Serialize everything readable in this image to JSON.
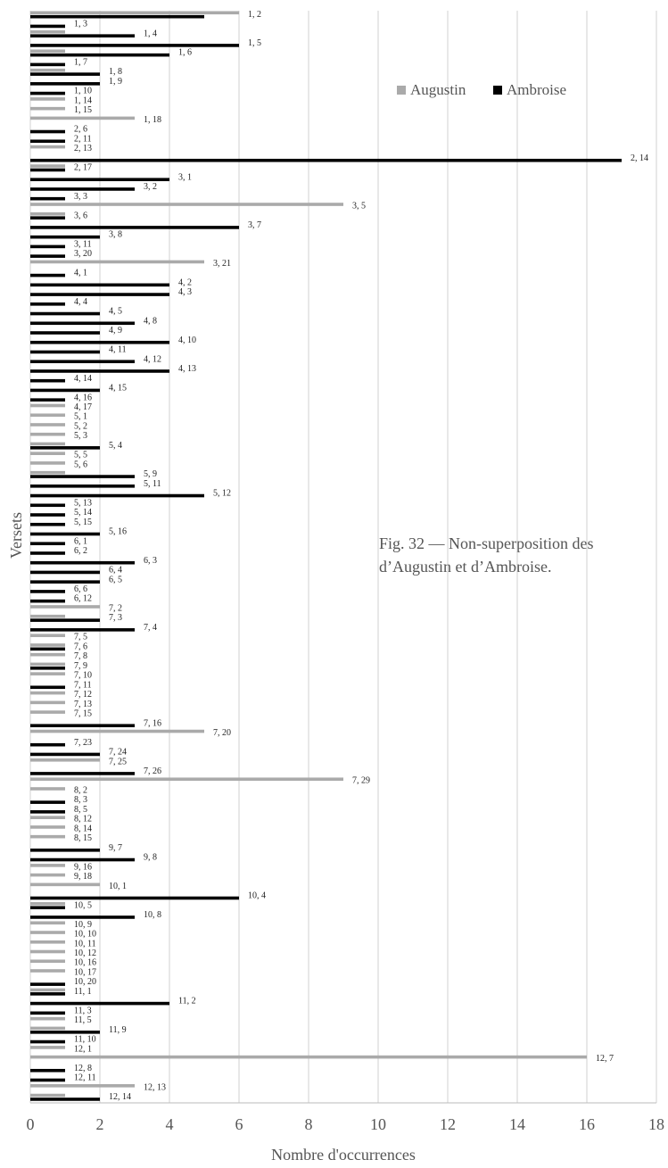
{
  "chart_data": {
    "type": "barh",
    "x_label": "Nombre d'occurrences",
    "y_label": "Versets",
    "annotation": [
      "Fig. 32 — Non-superposition des",
      "d’Augustin et d’Ambroise."
    ],
    "legend": "upper right",
    "grid": true,
    "xlim": [
      0,
      18
    ],
    "xticks": [
      0,
      2,
      4,
      6,
      8,
      10,
      12,
      14,
      16,
      18
    ],
    "categories": [
      "1, 2",
      "1, 3",
      "1, 4",
      "1, 5",
      "1, 6",
      "1, 7",
      "1, 8",
      "1, 9",
      "1, 10",
      "1, 14",
      "1, 15",
      "1, 18",
      "2, 6",
      "2, 11",
      "2, 13",
      "2, 14",
      "2, 17",
      "3, 1",
      "3, 2",
      "3, 3",
      "3, 5",
      "3, 6",
      "3, 7",
      "3, 8",
      "3, 11",
      "3, 20",
      "3, 21",
      "4, 1",
      "4, 2",
      "4, 3",
      "4, 4",
      "4, 5",
      "4, 8",
      "4, 9",
      "4, 10",
      "4, 11",
      "4, 12",
      "4, 13",
      "4, 14",
      "4, 15",
      "4, 16",
      "4, 17",
      "5, 1",
      "5, 2",
      "5, 3",
      "5, 4",
      "5, 5",
      "5, 6",
      "5, 9",
      "5, 11",
      "5, 12",
      "5, 13",
      "5, 14",
      "5, 15",
      "5, 16",
      "6, 1",
      "6, 2",
      "6, 3",
      "6, 4",
      "6, 5",
      "6, 6",
      "6, 12",
      "7, 2",
      "7, 3",
      "7, 4",
      "7, 5",
      "7, 6",
      "7, 8",
      "7, 9",
      "7, 10",
      "7, 11",
      "7, 12",
      "7, 13",
      "7, 15",
      "7, 16",
      "7, 20",
      "7, 23",
      "7, 24",
      "7, 25",
      "7, 26",
      "7, 29",
      "8, 2",
      "8, 3",
      "8, 5",
      "8, 12",
      "8, 14",
      "8, 15",
      "9, 7",
      "9, 8",
      "9, 16",
      "9, 18",
      "10, 1",
      "10, 4",
      "10, 5",
      "10, 8",
      "10, 9",
      "10, 10",
      "10, 11",
      "10, 12",
      "10, 16",
      "10, 17",
      "10, 20",
      "11, 1",
      "11, 2",
      "11, 3",
      "11, 5",
      "11, 9",
      "11, 10",
      "12, 1",
      "12, 7",
      "12, 8",
      "12, 11",
      "12, 13",
      "12, 14"
    ],
    "series": [
      {
        "name": "Augustin",
        "color": "#aaaaaa",
        "values": [
          6,
          0,
          1,
          0,
          1,
          0,
          1,
          0,
          0,
          1,
          1,
          3,
          0,
          0,
          1,
          0,
          1,
          0,
          0,
          0,
          9,
          1,
          0,
          0,
          0,
          0,
          5,
          0,
          0,
          0,
          0,
          0,
          0,
          0,
          0,
          0,
          0,
          0,
          0,
          0,
          0,
          1,
          1,
          1,
          1,
          1,
          1,
          1,
          1,
          0,
          0,
          0,
          0,
          0,
          0,
          0,
          0,
          0,
          0,
          0,
          0,
          0,
          2,
          1,
          0,
          1,
          1,
          1,
          1,
          1,
          0,
          1,
          1,
          1,
          0,
          5,
          0,
          0,
          2,
          0,
          9,
          1,
          0,
          0,
          1,
          1,
          1,
          0,
          0,
          1,
          1,
          2,
          0,
          1,
          0,
          1,
          1,
          1,
          1,
          1,
          1,
          0,
          1,
          0,
          0,
          1,
          1,
          0,
          1,
          16,
          0,
          0,
          3,
          1
        ]
      },
      {
        "name": "Ambroise",
        "color": "#000000",
        "values": [
          5,
          1,
          3,
          6,
          4,
          1,
          2,
          2,
          1,
          0,
          0,
          0,
          1,
          1,
          0,
          17,
          1,
          4,
          3,
          1,
          0,
          1,
          6,
          2,
          1,
          1,
          0,
          1,
          4,
          4,
          1,
          2,
          3,
          2,
          4,
          2,
          3,
          4,
          1,
          2,
          1,
          0,
          0,
          0,
          0,
          2,
          0,
          0,
          3,
          3,
          5,
          1,
          1,
          1,
          2,
          1,
          1,
          3,
          2,
          2,
          1,
          1,
          0,
          2,
          3,
          0,
          1,
          0,
          1,
          0,
          1,
          0,
          0,
          0,
          3,
          0,
          1,
          2,
          0,
          3,
          0,
          0,
          1,
          1,
          0,
          0,
          0,
          2,
          3,
          0,
          0,
          0,
          6,
          1,
          3,
          0,
          0,
          0,
          0,
          0,
          0,
          1,
          1,
          4,
          1,
          0,
          2,
          1,
          0,
          0,
          1,
          1,
          0,
          2
        ]
      }
    ]
  }
}
